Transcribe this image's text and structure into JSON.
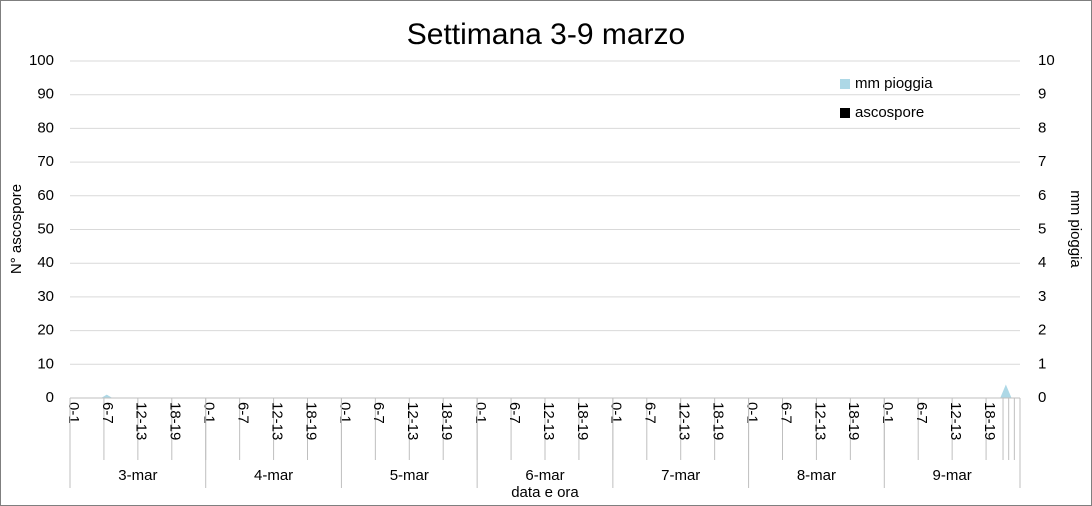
{
  "chart_data": {
    "type": "area",
    "title": "Settimana 3-9 marzo",
    "x_label": "data e ora",
    "y_label": "N° ascospore",
    "y2_label": "mm pioggia",
    "groups": [
      "3-mar",
      "4-mar",
      "5-mar",
      "6-mar",
      "7-mar",
      "8-mar",
      "9-mar"
    ],
    "categories": [
      "0-1",
      null,
      null,
      null,
      null,
      null,
      "6-7",
      null,
      null,
      null,
      null,
      null,
      "12-13",
      null,
      null,
      null,
      null,
      null,
      "18-19",
      null,
      null,
      null,
      null,
      null,
      "0-1",
      null,
      null,
      null,
      null,
      null,
      "6-7",
      null,
      null,
      null,
      null,
      null,
      "12-13",
      null,
      null,
      null,
      null,
      null,
      "18-19",
      null,
      null,
      null,
      null,
      null,
      "0-1",
      null,
      null,
      null,
      null,
      null,
      "6-7",
      null,
      null,
      null,
      null,
      null,
      "12-13",
      null,
      null,
      null,
      null,
      null,
      "18-19",
      null,
      null,
      null,
      null,
      null,
      "0-1",
      null,
      null,
      null,
      null,
      null,
      "6-7",
      null,
      null,
      null,
      null,
      null,
      "12-13",
      null,
      null,
      null,
      null,
      null,
      "18-19",
      null,
      null,
      null,
      null,
      null,
      "0-1",
      null,
      null,
      null,
      null,
      null,
      "6-7",
      null,
      null,
      null,
      null,
      null,
      "12-13",
      null,
      null,
      null,
      null,
      null,
      "18-19",
      null,
      null,
      null,
      null,
      null,
      "0-1",
      null,
      null,
      null,
      null,
      null,
      "6-7",
      null,
      null,
      null,
      null,
      null,
      "12-13",
      null,
      null,
      null,
      null,
      null,
      "18-19",
      null,
      null,
      null,
      null,
      null,
      "0-1",
      null,
      null,
      null,
      null,
      null,
      "6-7",
      null,
      null,
      null,
      null,
      null,
      "12-13",
      null,
      null,
      null,
      null,
      null,
      "18-19",
      null,
      null,
      null,
      null,
      null
    ],
    "series": [
      {
        "name": "mm pioggia",
        "color": "#add8e6",
        "axis": "y2",
        "values": [
          0,
          0,
          0,
          0,
          0,
          0,
          0.1,
          0,
          0,
          0,
          0,
          0,
          0,
          0,
          0,
          0,
          0,
          0,
          0,
          0,
          0,
          0,
          0,
          0,
          0,
          0,
          0,
          0,
          0,
          0,
          0,
          0,
          0,
          0,
          0,
          0,
          0,
          0,
          0,
          0,
          0,
          0,
          0,
          0,
          0,
          0,
          0,
          0,
          0,
          0,
          0,
          0,
          0,
          0,
          0,
          0,
          0,
          0,
          0,
          0,
          0,
          0,
          0,
          0,
          0,
          0,
          0,
          0,
          0,
          0,
          0,
          0,
          0,
          0,
          0,
          0,
          0,
          0,
          0,
          0,
          0,
          0,
          0,
          0,
          0,
          0,
          0,
          0,
          0,
          0,
          0,
          0,
          0,
          0,
          0,
          0,
          0,
          0,
          0,
          0,
          0,
          0,
          0,
          0,
          0,
          0,
          0,
          0,
          0,
          0,
          0,
          0,
          0,
          0,
          0,
          0,
          0,
          0,
          0,
          0,
          0,
          0,
          0,
          0,
          0,
          0,
          0,
          0,
          0,
          0,
          0,
          0,
          0,
          0,
          0,
          0,
          0,
          0,
          0,
          0,
          0,
          0,
          0,
          0,
          0,
          0,
          0,
          0,
          0,
          0,
          0,
          0,
          0,
          0,
          0,
          0,
          0,
          0,
          0,
          0,
          0,
          0,
          0,
          0,
          0,
          0.4,
          0,
          0
        ]
      },
      {
        "name": "ascospore",
        "color": "#000000",
        "values": [
          0,
          0,
          0,
          0,
          0,
          0,
          0,
          0,
          0,
          0,
          0,
          0,
          0,
          0,
          0,
          0,
          0,
          0,
          0,
          0,
          0,
          0,
          0,
          0,
          0,
          0,
          0,
          0,
          0,
          0,
          0,
          0,
          0,
          0,
          0,
          0,
          0,
          0,
          0,
          0,
          0,
          0,
          0,
          0,
          0,
          0,
          0,
          0,
          0,
          0,
          0,
          0,
          0,
          0,
          0,
          0,
          0,
          0,
          0,
          0,
          0,
          0,
          0,
          0,
          0,
          0,
          0,
          0,
          0,
          0,
          0,
          0,
          0,
          0,
          0,
          0,
          0,
          0,
          0,
          0,
          0,
          0,
          0,
          0,
          0,
          0,
          0,
          0,
          0,
          0,
          0,
          0,
          0,
          0,
          0,
          0,
          0,
          0,
          0,
          0,
          0,
          0,
          0,
          0,
          0,
          0,
          0,
          0,
          0,
          0,
          0,
          0,
          0,
          0,
          0,
          0,
          0,
          0,
          0,
          0,
          0,
          0,
          0,
          0,
          0,
          0,
          0,
          0,
          0,
          0,
          0,
          0,
          0,
          0,
          0,
          0,
          0,
          0,
          0,
          0,
          0,
          0,
          0,
          0,
          0,
          0,
          0,
          0,
          0,
          0,
          0,
          0,
          0,
          0,
          0,
          0,
          0,
          0,
          0,
          0,
          0,
          0,
          0,
          0,
          0,
          0,
          0,
          0
        ]
      }
    ],
    "ylim": [
      0,
      100
    ],
    "yticks": [
      0,
      10,
      20,
      30,
      40,
      50,
      60,
      70,
      80,
      90,
      100
    ],
    "y2lim": [
      0,
      10
    ],
    "y2ticks": [
      0,
      1,
      2,
      3,
      4,
      5,
      6,
      7,
      8,
      9,
      10
    ],
    "grid": true,
    "legend": "top-right"
  }
}
